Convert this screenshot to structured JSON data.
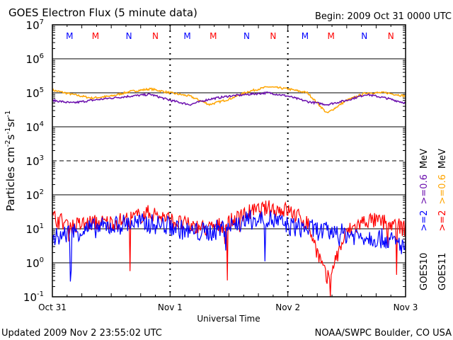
{
  "chart_data": {
    "type": "line",
    "title": "GOES Electron Flux (5 minute data)",
    "begin": "Begin: 2009 Oct 31 0000 UTC",
    "xlabel": "Universal Time",
    "ylabel_parts": [
      "Particles cm",
      "-2",
      "s",
      "-1",
      "sr",
      "-1"
    ],
    "x_hours": [
      0,
      4,
      8,
      12,
      16,
      20,
      24,
      28,
      32,
      36,
      40,
      44,
      48,
      52,
      56,
      60,
      64,
      68,
      72
    ],
    "xlim_hours": [
      0,
      72
    ],
    "x_ticks": [
      {
        "hour": 0,
        "label": "Oct 31"
      },
      {
        "hour": 24,
        "label": "Nov 1"
      },
      {
        "hour": 48,
        "label": "Nov 2"
      },
      {
        "hour": 72,
        "label": "Nov 3"
      }
    ],
    "ylim_log10": [
      -1,
      7
    ],
    "y_ticks": [
      {
        "exp": 7,
        "label": "7"
      },
      {
        "exp": 6,
        "label": "6"
      },
      {
        "exp": 5,
        "label": "5"
      },
      {
        "exp": 4,
        "label": "4"
      },
      {
        "exp": 3,
        "label": "3"
      },
      {
        "exp": 2,
        "label": "2"
      },
      {
        "exp": 1,
        "label": "1"
      },
      {
        "exp": 0,
        "label": "0"
      },
      {
        "exp": -1,
        "label": "-1"
      }
    ],
    "y_tick_base": "10",
    "threshold_exp": 3,
    "series": [
      {
        "name": "GOES11 >=0.6 MeV",
        "color": "#ffa500",
        "noise": 0.03,
        "values": [
          120000,
          90000,
          70000,
          80000,
          110000,
          130000,
          100000,
          80000,
          45000,
          65000,
          110000,
          150000,
          130000,
          100000,
          25000,
          60000,
          100000,
          100000,
          80000
        ]
      },
      {
        "name": "GOES10 >=0.6 MeV",
        "color": "#6a0dad",
        "noise": 0.03,
        "values": [
          60000,
          50000,
          60000,
          70000,
          80000,
          90000,
          60000,
          45000,
          65000,
          80000,
          90000,
          100000,
          80000,
          55000,
          45000,
          60000,
          90000,
          70000,
          50000
        ]
      },
      {
        "name": "GOES11 >=2 MeV",
        "color": "#ff0000",
        "noise": 0.25,
        "values": [
          22,
          12,
          15,
          15,
          20,
          30,
          18,
          12,
          10,
          15,
          30,
          40,
          35,
          15,
          0.3,
          8,
          18,
          15,
          10
        ]
      },
      {
        "name": "GOES10 >=2 MeV",
        "color": "#0000ff",
        "noise": 0.3,
        "values": [
          5,
          8,
          10,
          12,
          15,
          14,
          12,
          8,
          8,
          12,
          18,
          20,
          12,
          10,
          8,
          7,
          6,
          5,
          3
        ]
      }
    ],
    "markers": [
      {
        "hour": 3.5,
        "label": "M",
        "color": "#0000ff"
      },
      {
        "hour": 8.8,
        "label": "M",
        "color": "#ff0000"
      },
      {
        "hour": 15.6,
        "label": "N",
        "color": "#0000ff"
      },
      {
        "hour": 21,
        "label": "N",
        "color": "#ff0000"
      },
      {
        "hour": 27.5,
        "label": "M",
        "color": "#0000ff"
      },
      {
        "hour": 32.8,
        "label": "M",
        "color": "#ff0000"
      },
      {
        "hour": 39.6,
        "label": "N",
        "color": "#0000ff"
      },
      {
        "hour": 45,
        "label": "N",
        "color": "#ff0000"
      },
      {
        "hour": 51.5,
        "label": "M",
        "color": "#0000ff"
      },
      {
        "hour": 56.8,
        "label": "M",
        "color": "#ff0000"
      },
      {
        "hour": 63.6,
        "label": "N",
        "color": "#0000ff"
      },
      {
        "hour": 69,
        "label": "N",
        "color": "#ff0000"
      }
    ],
    "legend": {
      "col1": {
        "sat": "GOES10",
        "e2": ">=2",
        "e06": ">=0.6",
        "unit": "MeV",
        "e2_color": "#0000ff",
        "e06_color": "#6a0dad"
      },
      "col2": {
        "sat": "GOES11",
        "e2": ">=2",
        "e06": ">=0.6",
        "unit": "MeV",
        "e2_color": "#ff0000",
        "e06_color": "#ffa500"
      },
      "placement": "right"
    }
  },
  "footer": {
    "updated": "Updated 2009 Nov  2 23:55:02 UTC",
    "credit": "NOAA/SWPC Boulder, CO USA"
  }
}
